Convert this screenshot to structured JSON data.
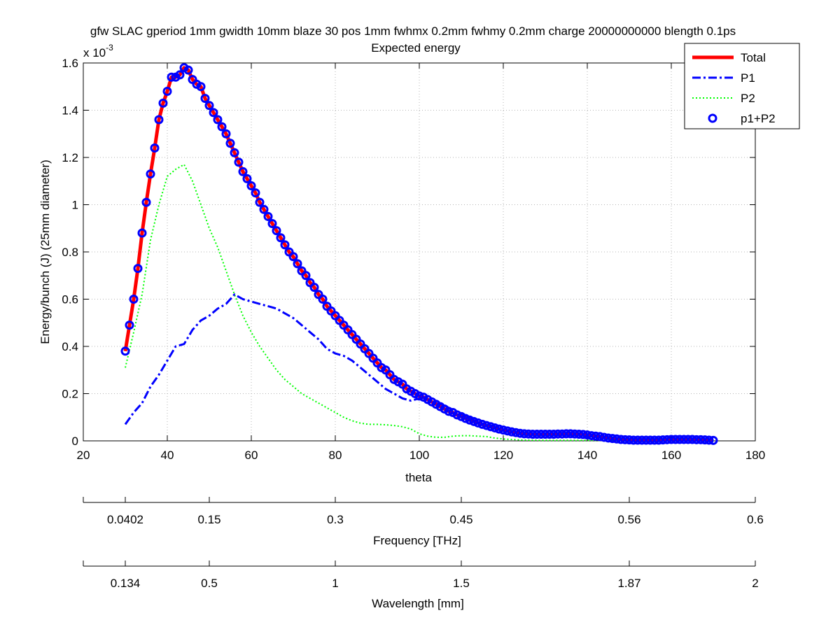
{
  "chart_data": {
    "type": "line",
    "title": "gfw SLAC gperiod 1mm gwidth 10mm blaze 30 pos 1mm fwhmx 0.2mm fwhmy 0.2mm charge 20000000000 blength 0.1ps",
    "subtitle": "Expected energy",
    "xlabel": "theta",
    "ylabel": "Energy/bunch (J) (25mm diameter)",
    "y_exponent_base": "x 10",
    "y_exponent_power": "-3",
    "xlim": [
      20,
      180
    ],
    "ylim": [
      0,
      1.6
    ],
    "x_ticks": [
      20,
      40,
      60,
      80,
      100,
      120,
      140,
      160,
      180
    ],
    "x_tick_labels": [
      "20",
      "40",
      "60",
      "80",
      "100",
      "120",
      "140",
      "160",
      "180"
    ],
    "y_ticks": [
      0,
      0.2,
      0.4,
      0.6,
      0.8,
      1.0,
      1.2,
      1.4,
      1.6
    ],
    "y_tick_labels": [
      "0",
      "0.2",
      "0.4",
      "0.6",
      "0.8",
      "1",
      "1.2",
      "1.4",
      "1.6"
    ],
    "grid": true,
    "legend_position": "top-right",
    "secondary_axes": [
      {
        "label": "Frequency [THz]",
        "ticks_theta": [
          20,
          30,
          50,
          80,
          110,
          150,
          180
        ],
        "tick_labels": [
          "",
          "0.0402",
          "0.15",
          "0.3",
          "0.45",
          "0.56",
          "0.6"
        ]
      },
      {
        "label": "Wavelength [mm]",
        "ticks_theta": [
          20,
          30,
          50,
          80,
          110,
          150,
          180
        ],
        "tick_labels": [
          "",
          "0.134",
          "0.5",
          "1",
          "1.5",
          "1.87",
          "2"
        ]
      }
    ],
    "series": [
      {
        "name": "Total",
        "style": "solid",
        "color": "#ff0000",
        "points": [
          [
            30,
            0.38
          ],
          [
            31,
            0.49
          ],
          [
            32,
            0.6
          ],
          [
            33,
            0.73
          ],
          [
            34,
            0.88
          ],
          [
            35,
            1.01
          ],
          [
            36,
            1.13
          ],
          [
            37,
            1.24
          ],
          [
            38,
            1.36
          ],
          [
            39,
            1.43
          ],
          [
            40,
            1.48
          ],
          [
            41,
            1.54
          ],
          [
            42,
            1.54
          ],
          [
            43,
            1.55
          ],
          [
            44,
            1.58
          ],
          [
            45,
            1.57
          ],
          [
            46,
            1.53
          ],
          [
            47,
            1.51
          ],
          [
            48,
            1.5
          ],
          [
            49,
            1.45
          ],
          [
            50,
            1.42
          ],
          [
            51,
            1.39
          ],
          [
            52,
            1.36
          ],
          [
            53,
            1.33
          ],
          [
            54,
            1.3
          ],
          [
            55,
            1.26
          ],
          [
            56,
            1.22
          ],
          [
            57,
            1.18
          ],
          [
            58,
            1.14
          ],
          [
            59,
            1.11
          ],
          [
            60,
            1.08
          ],
          [
            61,
            1.05
          ],
          [
            62,
            1.01
          ],
          [
            63,
            0.98
          ],
          [
            64,
            0.95
          ],
          [
            65,
            0.92
          ],
          [
            66,
            0.89
          ],
          [
            67,
            0.86
          ],
          [
            68,
            0.83
          ],
          [
            69,
            0.8
          ],
          [
            70,
            0.78
          ],
          [
            71,
            0.75
          ],
          [
            72,
            0.72
          ],
          [
            73,
            0.7
          ],
          [
            74,
            0.67
          ],
          [
            75,
            0.65
          ],
          [
            76,
            0.62
          ],
          [
            77,
            0.6
          ],
          [
            78,
            0.57
          ],
          [
            79,
            0.55
          ],
          [
            80,
            0.53
          ],
          [
            81,
            0.51
          ],
          [
            82,
            0.49
          ],
          [
            83,
            0.47
          ],
          [
            84,
            0.45
          ],
          [
            85,
            0.43
          ],
          [
            86,
            0.41
          ],
          [
            87,
            0.39
          ],
          [
            88,
            0.37
          ],
          [
            89,
            0.35
          ],
          [
            90,
            0.33
          ],
          [
            91,
            0.31
          ],
          [
            92,
            0.3
          ],
          [
            93,
            0.28
          ],
          [
            94,
            0.26
          ],
          [
            95,
            0.25
          ],
          [
            96,
            0.24
          ],
          [
            97,
            0.22
          ],
          [
            98,
            0.21
          ],
          [
            99,
            0.2
          ],
          [
            100,
            0.19
          ],
          [
            101,
            0.185
          ],
          [
            102,
            0.175
          ],
          [
            103,
            0.165
          ],
          [
            104,
            0.155
          ],
          [
            105,
            0.145
          ],
          [
            106,
            0.135
          ],
          [
            107,
            0.125
          ],
          [
            108,
            0.12
          ],
          [
            109,
            0.11
          ],
          [
            110,
            0.103
          ],
          [
            111,
            0.095
          ],
          [
            112,
            0.088
          ],
          [
            113,
            0.082
          ],
          [
            114,
            0.076
          ],
          [
            115,
            0.07
          ],
          [
            116,
            0.065
          ],
          [
            117,
            0.06
          ],
          [
            118,
            0.055
          ],
          [
            119,
            0.05
          ],
          [
            120,
            0.046
          ],
          [
            121,
            0.042
          ],
          [
            122,
            0.038
          ],
          [
            123,
            0.035
          ],
          [
            124,
            0.032
          ],
          [
            125,
            0.03
          ],
          [
            126,
            0.029
          ],
          [
            127,
            0.028
          ],
          [
            128,
            0.028
          ],
          [
            129,
            0.028
          ],
          [
            130,
            0.028
          ],
          [
            131,
            0.028
          ],
          [
            132,
            0.028
          ],
          [
            133,
            0.029
          ],
          [
            134,
            0.029
          ],
          [
            135,
            0.03
          ],
          [
            136,
            0.03
          ],
          [
            137,
            0.029
          ],
          [
            138,
            0.028
          ],
          [
            139,
            0.027
          ],
          [
            140,
            0.025
          ],
          [
            141,
            0.022
          ],
          [
            142,
            0.02
          ],
          [
            143,
            0.018
          ],
          [
            144,
            0.015
          ],
          [
            145,
            0.012
          ],
          [
            146,
            0.01
          ],
          [
            147,
            0.008
          ],
          [
            148,
            0.006
          ],
          [
            149,
            0.005
          ],
          [
            150,
            0.004
          ],
          [
            151,
            0.003
          ],
          [
            152,
            0.003
          ],
          [
            153,
            0.003
          ],
          [
            154,
            0.003
          ],
          [
            155,
            0.003
          ],
          [
            156,
            0.003
          ],
          [
            157,
            0.003
          ],
          [
            158,
            0.004
          ],
          [
            159,
            0.005
          ],
          [
            160,
            0.006
          ],
          [
            161,
            0.006
          ],
          [
            162,
            0.006
          ],
          [
            163,
            0.006
          ],
          [
            164,
            0.006
          ],
          [
            165,
            0.006
          ],
          [
            166,
            0.005
          ],
          [
            167,
            0.005
          ],
          [
            168,
            0.004
          ],
          [
            169,
            0.003
          ],
          [
            170,
            0.002
          ]
        ]
      },
      {
        "name": "P1",
        "style": "dashdot",
        "color": "#0000ff",
        "points": [
          [
            30,
            0.07
          ],
          [
            32,
            0.12
          ],
          [
            34,
            0.16
          ],
          [
            36,
            0.23
          ],
          [
            38,
            0.28
          ],
          [
            40,
            0.34
          ],
          [
            42,
            0.4
          ],
          [
            44,
            0.41
          ],
          [
            46,
            0.47
          ],
          [
            48,
            0.51
          ],
          [
            50,
            0.53
          ],
          [
            52,
            0.56
          ],
          [
            54,
            0.58
          ],
          [
            56,
            0.62
          ],
          [
            58,
            0.6
          ],
          [
            60,
            0.59
          ],
          [
            62,
            0.58
          ],
          [
            64,
            0.57
          ],
          [
            66,
            0.56
          ],
          [
            68,
            0.54
          ],
          [
            70,
            0.52
          ],
          [
            72,
            0.49
          ],
          [
            74,
            0.46
          ],
          [
            76,
            0.43
          ],
          [
            78,
            0.39
          ],
          [
            80,
            0.37
          ],
          [
            82,
            0.36
          ],
          [
            84,
            0.34
          ],
          [
            86,
            0.31
          ],
          [
            88,
            0.28
          ],
          [
            90,
            0.25
          ],
          [
            92,
            0.22
          ],
          [
            94,
            0.2
          ],
          [
            96,
            0.18
          ],
          [
            98,
            0.17
          ],
          [
            100,
            0.18
          ],
          [
            102,
            0.17
          ],
          [
            104,
            0.16
          ],
          [
            106,
            0.15
          ],
          [
            108,
            0.13
          ],
          [
            110,
            0.11
          ],
          [
            112,
            0.095
          ],
          [
            114,
            0.08
          ],
          [
            116,
            0.07
          ],
          [
            118,
            0.06
          ],
          [
            120,
            0.05
          ],
          [
            122,
            0.04
          ],
          [
            124,
            0.035
          ],
          [
            126,
            0.03
          ],
          [
            128,
            0.028
          ],
          [
            130,
            0.027
          ],
          [
            135,
            0.027
          ],
          [
            140,
            0.022
          ],
          [
            145,
            0.012
          ],
          [
            150,
            0.005
          ],
          [
            155,
            0.003
          ],
          [
            160,
            0.005
          ],
          [
            165,
            0.005
          ],
          [
            170,
            0.002
          ]
        ]
      },
      {
        "name": "P2",
        "style": "dotted",
        "color": "#00ff00",
        "points": [
          [
            30,
            0.31
          ],
          [
            32,
            0.46
          ],
          [
            34,
            0.62
          ],
          [
            36,
            0.85
          ],
          [
            38,
            1.0
          ],
          [
            40,
            1.12
          ],
          [
            42,
            1.15
          ],
          [
            44,
            1.17
          ],
          [
            46,
            1.1
          ],
          [
            48,
            1.0
          ],
          [
            50,
            0.9
          ],
          [
            52,
            0.82
          ],
          [
            54,
            0.72
          ],
          [
            56,
            0.62
          ],
          [
            58,
            0.53
          ],
          [
            60,
            0.46
          ],
          [
            62,
            0.4
          ],
          [
            64,
            0.35
          ],
          [
            66,
            0.3
          ],
          [
            68,
            0.26
          ],
          [
            70,
            0.23
          ],
          [
            72,
            0.2
          ],
          [
            74,
            0.18
          ],
          [
            76,
            0.16
          ],
          [
            78,
            0.14
          ],
          [
            80,
            0.12
          ],
          [
            82,
            0.1
          ],
          [
            84,
            0.085
          ],
          [
            86,
            0.075
          ],
          [
            88,
            0.07
          ],
          [
            90,
            0.07
          ],
          [
            92,
            0.068
          ],
          [
            94,
            0.065
          ],
          [
            96,
            0.06
          ],
          [
            98,
            0.05
          ],
          [
            100,
            0.03
          ],
          [
            102,
            0.02
          ],
          [
            104,
            0.015
          ],
          [
            106,
            0.015
          ],
          [
            108,
            0.02
          ],
          [
            110,
            0.022
          ],
          [
            112,
            0.022
          ],
          [
            114,
            0.02
          ],
          [
            116,
            0.018
          ],
          [
            118,
            0.012
          ],
          [
            120,
            0.008
          ],
          [
            125,
            0.003
          ],
          [
            130,
            0.002
          ],
          [
            140,
            0.002
          ],
          [
            150,
            0.001
          ],
          [
            160,
            0.001
          ],
          [
            170,
            0.001
          ]
        ]
      },
      {
        "name": "p1+P2",
        "style": "markers",
        "color": "#0000ff",
        "points_same_as": "Total"
      }
    ]
  },
  "legend": {
    "entries": [
      {
        "label": "Total",
        "style": "solid",
        "color": "#ff0000"
      },
      {
        "label": "P1",
        "style": "dashdot",
        "color": "#0000ff"
      },
      {
        "label": "P2",
        "style": "dotted",
        "color": "#00ff00"
      },
      {
        "label": "p1+P2",
        "style": "marker",
        "color": "#0000ff"
      }
    ]
  }
}
